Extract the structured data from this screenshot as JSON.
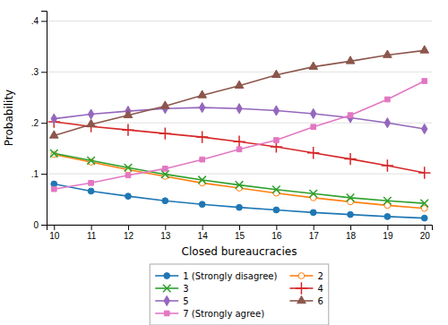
{
  "chart_data": {
    "type": "line",
    "xlabel": "Closed bureaucracies",
    "ylabel": "Probability",
    "x": [
      10,
      11,
      12,
      13,
      14,
      15,
      16,
      17,
      18,
      19,
      20
    ],
    "series": [
      {
        "name": "1 (Strongly disagree)",
        "marker": "circle",
        "values": [
          0.08,
          0.066,
          0.056,
          0.047,
          0.04,
          0.034,
          0.029,
          0.024,
          0.02,
          0.016,
          0.013
        ]
      },
      {
        "name": "2",
        "marker": "circle-open",
        "values": [
          0.138,
          0.123,
          0.108,
          0.095,
          0.082,
          0.072,
          0.062,
          0.053,
          0.045,
          0.038,
          0.032
        ]
      },
      {
        "name": "3",
        "marker": "x",
        "values": [
          0.14,
          0.126,
          0.112,
          0.099,
          0.088,
          0.078,
          0.069,
          0.061,
          0.053,
          0.047,
          0.042
        ]
      },
      {
        "name": "4",
        "marker": "plus",
        "values": [
          0.202,
          0.193,
          0.186,
          0.179,
          0.172,
          0.163,
          0.153,
          0.141,
          0.129,
          0.116,
          0.102
        ]
      },
      {
        "name": "5",
        "marker": "diamond",
        "values": [
          0.208,
          0.217,
          0.223,
          0.228,
          0.23,
          0.228,
          0.224,
          0.218,
          0.21,
          0.2,
          0.188
        ]
      },
      {
        "name": "6",
        "marker": "triangle",
        "values": [
          0.175,
          0.197,
          0.215,
          0.233,
          0.254,
          0.273,
          0.294,
          0.31,
          0.321,
          0.333,
          0.342
        ]
      },
      {
        "name": "7 (Strongly agree)",
        "marker": "square",
        "values": [
          0.07,
          0.082,
          0.097,
          0.11,
          0.128,
          0.148,
          0.166,
          0.192,
          0.215,
          0.246,
          0.282
        ]
      }
    ],
    "xlim": [
      9.8,
      20.2
    ],
    "xticks": [
      10,
      11,
      12,
      13,
      14,
      15,
      16,
      17,
      18,
      19,
      20
    ],
    "ylim": [
      0,
      0.42
    ],
    "yticks": [
      0,
      {
        "value": 0.1,
        "label": ".1"
      },
      {
        "value": 0.2,
        "label": ".2"
      },
      {
        "value": 0.3,
        "label": ".3"
      },
      {
        "value": 0.4,
        "label": ".4"
      }
    ],
    "grid": true,
    "legend": "bottom"
  }
}
